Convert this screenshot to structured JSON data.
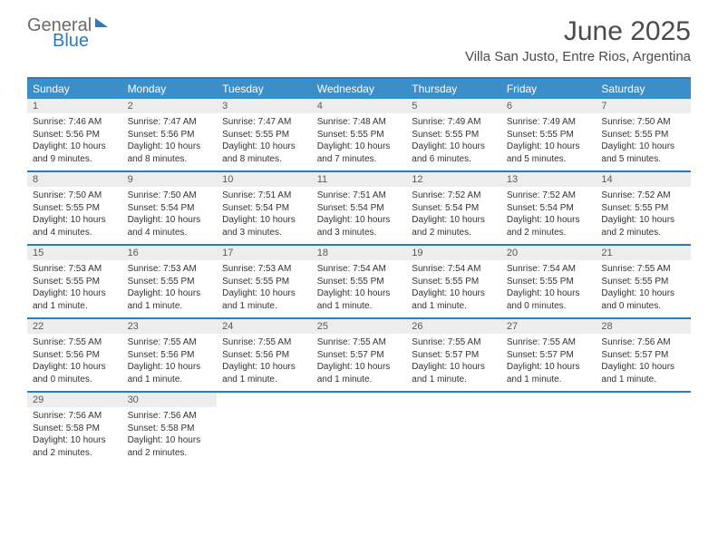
{
  "brand": {
    "text1": "General",
    "text2": "Blue"
  },
  "header": {
    "month_title": "June 2025",
    "location": "Villa San Justo, Entre Rios, Argentina"
  },
  "colors": {
    "header_bar": "#3b8fc8",
    "rule": "#2b7bbf",
    "daynum_bg": "#ededed",
    "text": "#333333"
  },
  "day_labels": [
    "Sunday",
    "Monday",
    "Tuesday",
    "Wednesday",
    "Thursday",
    "Friday",
    "Saturday"
  ],
  "weeks": [
    [
      {
        "n": "1",
        "sunrise": "Sunrise: 7:46 AM",
        "sunset": "Sunset: 5:56 PM",
        "d1": "Daylight: 10 hours",
        "d2": "and 9 minutes."
      },
      {
        "n": "2",
        "sunrise": "Sunrise: 7:47 AM",
        "sunset": "Sunset: 5:56 PM",
        "d1": "Daylight: 10 hours",
        "d2": "and 8 minutes."
      },
      {
        "n": "3",
        "sunrise": "Sunrise: 7:47 AM",
        "sunset": "Sunset: 5:55 PM",
        "d1": "Daylight: 10 hours",
        "d2": "and 8 minutes."
      },
      {
        "n": "4",
        "sunrise": "Sunrise: 7:48 AM",
        "sunset": "Sunset: 5:55 PM",
        "d1": "Daylight: 10 hours",
        "d2": "and 7 minutes."
      },
      {
        "n": "5",
        "sunrise": "Sunrise: 7:49 AM",
        "sunset": "Sunset: 5:55 PM",
        "d1": "Daylight: 10 hours",
        "d2": "and 6 minutes."
      },
      {
        "n": "6",
        "sunrise": "Sunrise: 7:49 AM",
        "sunset": "Sunset: 5:55 PM",
        "d1": "Daylight: 10 hours",
        "d2": "and 5 minutes."
      },
      {
        "n": "7",
        "sunrise": "Sunrise: 7:50 AM",
        "sunset": "Sunset: 5:55 PM",
        "d1": "Daylight: 10 hours",
        "d2": "and 5 minutes."
      }
    ],
    [
      {
        "n": "8",
        "sunrise": "Sunrise: 7:50 AM",
        "sunset": "Sunset: 5:55 PM",
        "d1": "Daylight: 10 hours",
        "d2": "and 4 minutes."
      },
      {
        "n": "9",
        "sunrise": "Sunrise: 7:50 AM",
        "sunset": "Sunset: 5:54 PM",
        "d1": "Daylight: 10 hours",
        "d2": "and 4 minutes."
      },
      {
        "n": "10",
        "sunrise": "Sunrise: 7:51 AM",
        "sunset": "Sunset: 5:54 PM",
        "d1": "Daylight: 10 hours",
        "d2": "and 3 minutes."
      },
      {
        "n": "11",
        "sunrise": "Sunrise: 7:51 AM",
        "sunset": "Sunset: 5:54 PM",
        "d1": "Daylight: 10 hours",
        "d2": "and 3 minutes."
      },
      {
        "n": "12",
        "sunrise": "Sunrise: 7:52 AM",
        "sunset": "Sunset: 5:54 PM",
        "d1": "Daylight: 10 hours",
        "d2": "and 2 minutes."
      },
      {
        "n": "13",
        "sunrise": "Sunrise: 7:52 AM",
        "sunset": "Sunset: 5:54 PM",
        "d1": "Daylight: 10 hours",
        "d2": "and 2 minutes."
      },
      {
        "n": "14",
        "sunrise": "Sunrise: 7:52 AM",
        "sunset": "Sunset: 5:55 PM",
        "d1": "Daylight: 10 hours",
        "d2": "and 2 minutes."
      }
    ],
    [
      {
        "n": "15",
        "sunrise": "Sunrise: 7:53 AM",
        "sunset": "Sunset: 5:55 PM",
        "d1": "Daylight: 10 hours",
        "d2": "and 1 minute."
      },
      {
        "n": "16",
        "sunrise": "Sunrise: 7:53 AM",
        "sunset": "Sunset: 5:55 PM",
        "d1": "Daylight: 10 hours",
        "d2": "and 1 minute."
      },
      {
        "n": "17",
        "sunrise": "Sunrise: 7:53 AM",
        "sunset": "Sunset: 5:55 PM",
        "d1": "Daylight: 10 hours",
        "d2": "and 1 minute."
      },
      {
        "n": "18",
        "sunrise": "Sunrise: 7:54 AM",
        "sunset": "Sunset: 5:55 PM",
        "d1": "Daylight: 10 hours",
        "d2": "and 1 minute."
      },
      {
        "n": "19",
        "sunrise": "Sunrise: 7:54 AM",
        "sunset": "Sunset: 5:55 PM",
        "d1": "Daylight: 10 hours",
        "d2": "and 1 minute."
      },
      {
        "n": "20",
        "sunrise": "Sunrise: 7:54 AM",
        "sunset": "Sunset: 5:55 PM",
        "d1": "Daylight: 10 hours",
        "d2": "and 0 minutes."
      },
      {
        "n": "21",
        "sunrise": "Sunrise: 7:55 AM",
        "sunset": "Sunset: 5:55 PM",
        "d1": "Daylight: 10 hours",
        "d2": "and 0 minutes."
      }
    ],
    [
      {
        "n": "22",
        "sunrise": "Sunrise: 7:55 AM",
        "sunset": "Sunset: 5:56 PM",
        "d1": "Daylight: 10 hours",
        "d2": "and 0 minutes."
      },
      {
        "n": "23",
        "sunrise": "Sunrise: 7:55 AM",
        "sunset": "Sunset: 5:56 PM",
        "d1": "Daylight: 10 hours",
        "d2": "and 1 minute."
      },
      {
        "n": "24",
        "sunrise": "Sunrise: 7:55 AM",
        "sunset": "Sunset: 5:56 PM",
        "d1": "Daylight: 10 hours",
        "d2": "and 1 minute."
      },
      {
        "n": "25",
        "sunrise": "Sunrise: 7:55 AM",
        "sunset": "Sunset: 5:57 PM",
        "d1": "Daylight: 10 hours",
        "d2": "and 1 minute."
      },
      {
        "n": "26",
        "sunrise": "Sunrise: 7:55 AM",
        "sunset": "Sunset: 5:57 PM",
        "d1": "Daylight: 10 hours",
        "d2": "and 1 minute."
      },
      {
        "n": "27",
        "sunrise": "Sunrise: 7:55 AM",
        "sunset": "Sunset: 5:57 PM",
        "d1": "Daylight: 10 hours",
        "d2": "and 1 minute."
      },
      {
        "n": "28",
        "sunrise": "Sunrise: 7:56 AM",
        "sunset": "Sunset: 5:57 PM",
        "d1": "Daylight: 10 hours",
        "d2": "and 1 minute."
      }
    ],
    [
      {
        "n": "29",
        "sunrise": "Sunrise: 7:56 AM",
        "sunset": "Sunset: 5:58 PM",
        "d1": "Daylight: 10 hours",
        "d2": "and 2 minutes."
      },
      {
        "n": "30",
        "sunrise": "Sunrise: 7:56 AM",
        "sunset": "Sunset: 5:58 PM",
        "d1": "Daylight: 10 hours",
        "d2": "and 2 minutes."
      },
      null,
      null,
      null,
      null,
      null
    ]
  ]
}
